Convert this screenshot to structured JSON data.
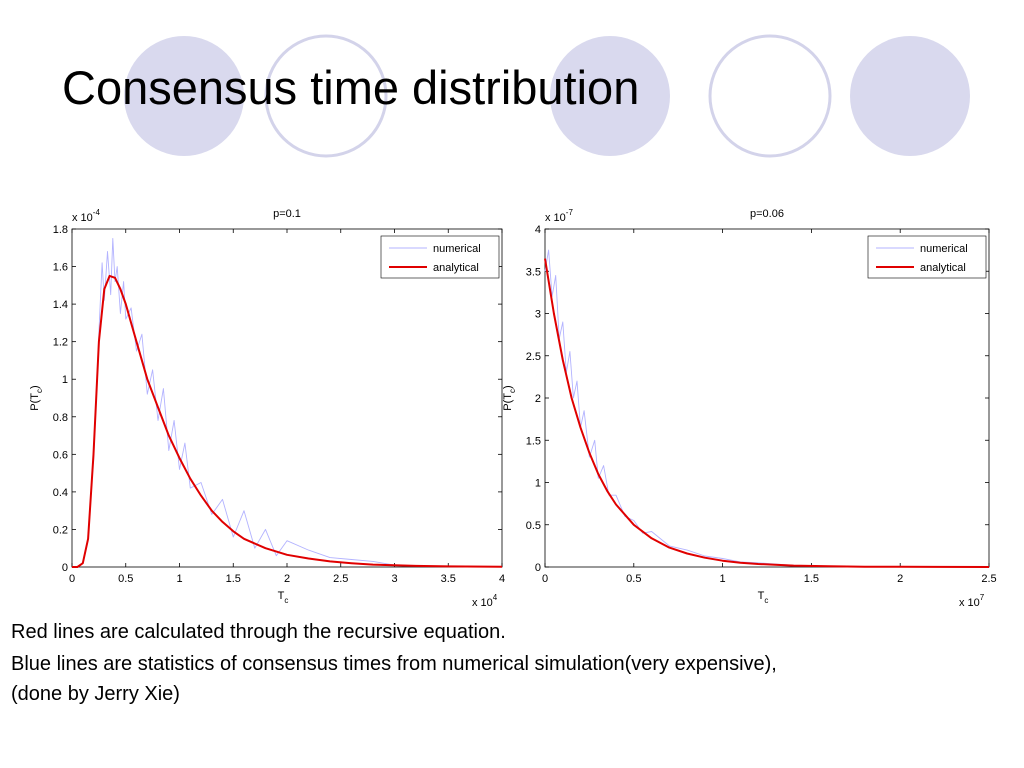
{
  "slide": {
    "title": "Consensus time distribution",
    "captions": [
      "Red lines are calculated through the recursive equation.",
      "Blue lines are statistics of consensus times from numerical simulation(very expensive),",
      "(done by Jerry Xie)"
    ],
    "colors": {
      "circle_filled": "#d9d9ee",
      "circle_outline": "#d3d3ea",
      "numerical": "#b3b3ff",
      "analytical": "#e00000"
    }
  },
  "chart_data": [
    {
      "type": "line",
      "title": "p=0.1",
      "xlabel": "T",
      "xlabel_sub": "c",
      "ylabel": "P(T",
      "ylabel_sub": "c",
      "ylabel_close": ")",
      "x_multiplier": {
        "base": "x 10",
        "exp": "4"
      },
      "y_multiplier": {
        "base": "x 10",
        "exp": "-4"
      },
      "xlim": [
        0,
        4
      ],
      "ylim": [
        0,
        1.8
      ],
      "xticks": [
        "0",
        "0.5",
        "1",
        "1.5",
        "2",
        "2.5",
        "3",
        "3.5",
        "4"
      ],
      "yticks": [
        "0",
        "0.2",
        "0.4",
        "0.6",
        "0.8",
        "1",
        "1.2",
        "1.4",
        "1.6",
        "1.8"
      ],
      "legend": {
        "position": "top-right",
        "entries": [
          "numerical",
          "analytical"
        ]
      },
      "series": [
        {
          "name": "analytical",
          "x": [
            0,
            0.05,
            0.1,
            0.15,
            0.2,
            0.25,
            0.3,
            0.35,
            0.4,
            0.45,
            0.5,
            0.55,
            0.6,
            0.7,
            0.8,
            0.9,
            1.0,
            1.1,
            1.2,
            1.3,
            1.4,
            1.5,
            1.6,
            1.8,
            2.0,
            2.2,
            2.4,
            2.6,
            2.8,
            3.0,
            3.2,
            3.5,
            4.0
          ],
          "y": [
            0,
            0.0,
            0.02,
            0.15,
            0.6,
            1.2,
            1.48,
            1.55,
            1.54,
            1.48,
            1.4,
            1.3,
            1.2,
            1.0,
            0.85,
            0.7,
            0.58,
            0.47,
            0.38,
            0.3,
            0.24,
            0.19,
            0.15,
            0.1,
            0.065,
            0.045,
            0.03,
            0.02,
            0.013,
            0.009,
            0.006,
            0.003,
            0.001
          ]
        },
        {
          "name": "numerical",
          "x": [
            0.2,
            0.25,
            0.28,
            0.3,
            0.33,
            0.36,
            0.38,
            0.4,
            0.42,
            0.45,
            0.48,
            0.5,
            0.55,
            0.6,
            0.65,
            0.7,
            0.75,
            0.8,
            0.85,
            0.9,
            0.95,
            1.0,
            1.05,
            1.1,
            1.2,
            1.3,
            1.4,
            1.5,
            1.6,
            1.7,
            1.8,
            1.9,
            2.0,
            2.2,
            2.4,
            2.6,
            2.8,
            3.0
          ],
          "y": [
            0.55,
            1.25,
            1.62,
            1.42,
            1.68,
            1.45,
            1.75,
            1.52,
            1.6,
            1.35,
            1.52,
            1.32,
            1.38,
            1.15,
            1.24,
            0.92,
            1.05,
            0.78,
            0.95,
            0.62,
            0.78,
            0.52,
            0.66,
            0.42,
            0.45,
            0.28,
            0.36,
            0.16,
            0.3,
            0.1,
            0.2,
            0.06,
            0.14,
            0.09,
            0.05,
            0.04,
            0.03,
            0.01
          ]
        }
      ]
    },
    {
      "type": "line",
      "title": "p=0.06",
      "xlabel": "T",
      "xlabel_sub": "c",
      "ylabel": "P(T",
      "ylabel_sub": "c",
      "ylabel_close": ")",
      "x_multiplier": {
        "base": "x 10",
        "exp": "7"
      },
      "y_multiplier": {
        "base": "x 10",
        "exp": "-7"
      },
      "xlim": [
        0,
        2.5
      ],
      "ylim": [
        0,
        4
      ],
      "xticks": [
        "0",
        "0.5",
        "1",
        "1.5",
        "2",
        "2.5"
      ],
      "yticks": [
        "0",
        "0.5",
        "1",
        "1.5",
        "2",
        "2.5",
        "3",
        "3.5",
        "4"
      ],
      "legend": {
        "position": "top-right",
        "entries": [
          "numerical",
          "analytical"
        ]
      },
      "series": [
        {
          "name": "analytical",
          "x": [
            0,
            0.05,
            0.1,
            0.15,
            0.2,
            0.25,
            0.3,
            0.35,
            0.4,
            0.5,
            0.6,
            0.7,
            0.8,
            0.9,
            1.0,
            1.1,
            1.2,
            1.4,
            1.6,
            1.8,
            2.0,
            2.2,
            2.5
          ],
          "y": [
            3.65,
            3.0,
            2.45,
            2.0,
            1.65,
            1.35,
            1.1,
            0.9,
            0.74,
            0.5,
            0.34,
            0.23,
            0.16,
            0.11,
            0.075,
            0.05,
            0.035,
            0.016,
            0.008,
            0.004,
            0.002,
            0.001,
            0.0
          ]
        },
        {
          "name": "numerical",
          "x": [
            0,
            0.02,
            0.04,
            0.06,
            0.08,
            0.1,
            0.12,
            0.14,
            0.16,
            0.18,
            0.2,
            0.22,
            0.25,
            0.28,
            0.3,
            0.33,
            0.36,
            0.4,
            0.45,
            0.5,
            0.55,
            0.6,
            0.7,
            0.8,
            0.9,
            1.0,
            1.1,
            1.2,
            1.4
          ],
          "y": [
            3.5,
            3.75,
            3.2,
            3.45,
            2.7,
            2.9,
            2.3,
            2.55,
            2.0,
            2.2,
            1.65,
            1.85,
            1.3,
            1.5,
            1.05,
            1.2,
            0.85,
            0.85,
            0.6,
            0.55,
            0.4,
            0.42,
            0.25,
            0.2,
            0.13,
            0.1,
            0.06,
            0.05,
            0.02
          ]
        }
      ]
    }
  ]
}
